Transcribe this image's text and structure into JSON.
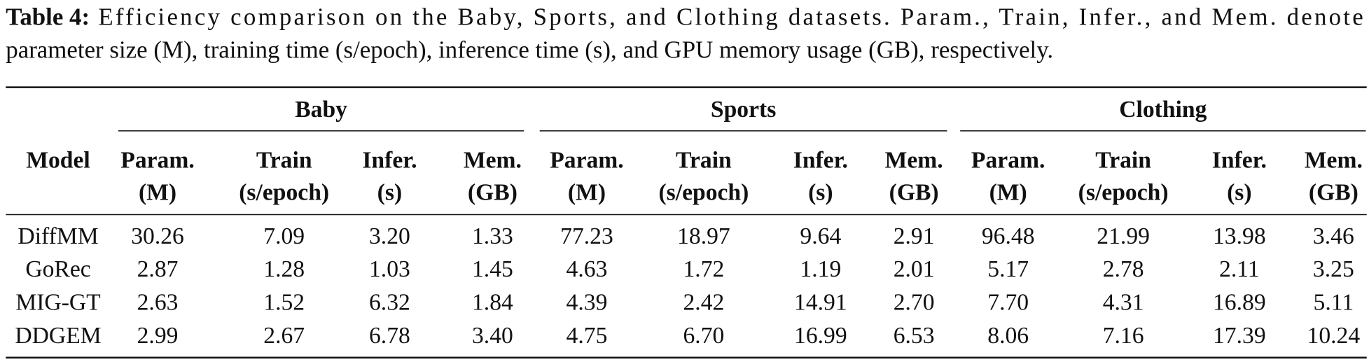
{
  "caption": {
    "label": "Table 4:",
    "lines": [
      "Efficiency comparison on the Baby, Sports, and Clothing datasets. Param., Train, Infer., and Mem. denote",
      "parameter size (M), training time (s/epoch), inference time (s), and GPU memory usage (GB), respectively."
    ]
  },
  "table": {
    "model_header": "Model",
    "groups": [
      {
        "name": "Baby",
        "columns": [
          {
            "name": "Param.",
            "unit": "(M)"
          },
          {
            "name": "Train",
            "unit": "(s/epoch)"
          },
          {
            "name": "Infer.",
            "unit": "(s)"
          },
          {
            "name": "Mem.",
            "unit": "(GB)"
          }
        ]
      },
      {
        "name": "Sports",
        "columns": [
          {
            "name": "Param.",
            "unit": "(M)"
          },
          {
            "name": "Train",
            "unit": "(s/epoch)"
          },
          {
            "name": "Infer.",
            "unit": "(s)"
          },
          {
            "name": "Mem.",
            "unit": "(GB)"
          }
        ]
      },
      {
        "name": "Clothing",
        "columns": [
          {
            "name": "Param.",
            "unit": "(M)"
          },
          {
            "name": "Train",
            "unit": "(s/epoch)"
          },
          {
            "name": "Infer.",
            "unit": "(s)"
          },
          {
            "name": "Mem.",
            "unit": "(GB)"
          }
        ]
      }
    ],
    "rows": [
      [
        "DiffMM",
        "30.26",
        "7.09",
        "3.20",
        "1.33",
        "77.23",
        "18.97",
        "9.64",
        "2.91",
        "96.48",
        "21.99",
        "13.98",
        "3.46"
      ],
      [
        "GoRec",
        "2.87",
        "1.28",
        "1.03",
        "1.45",
        "4.63",
        "1.72",
        "1.19",
        "2.01",
        "5.17",
        "2.78",
        "2.11",
        "3.25"
      ],
      [
        "MIG-GT",
        "2.63",
        "1.52",
        "6.32",
        "1.84",
        "4.39",
        "2.42",
        "14.91",
        "2.70",
        "7.70",
        "4.31",
        "16.89",
        "5.11"
      ],
      [
        "DDGEM",
        "2.99",
        "2.67",
        "6.78",
        "3.40",
        "4.75",
        "6.70",
        "16.99",
        "6.53",
        "8.06",
        "7.16",
        "17.39",
        "10.24"
      ]
    ]
  }
}
